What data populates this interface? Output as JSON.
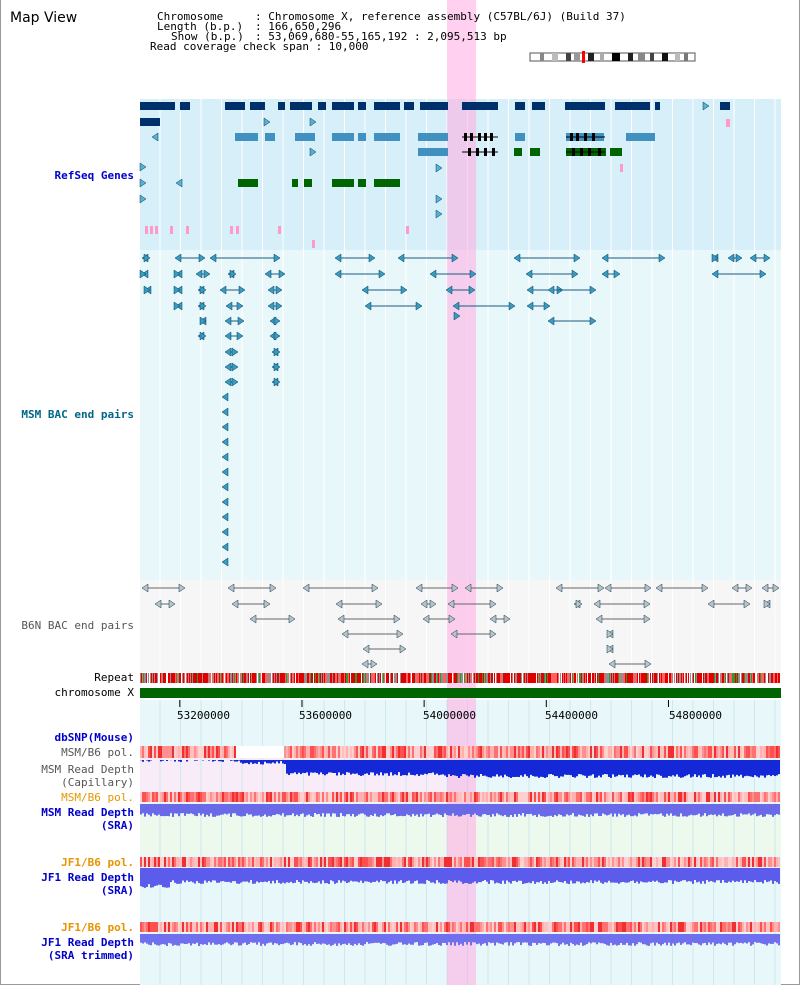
{
  "title": "Map View",
  "info": {
    "chromosome_key": "Chromosome",
    "chromosome_val": ": Chromosome X, reference assembly (C57BL/6J) (Build 37)",
    "length_key": "Length (b.p.)",
    "length_val": ": 166,650,296",
    "show_key": "Show (b.p.)",
    "show_val": ": 53,069,680-55,165,192 : 2,095,513 bp",
    "coverage": "Read coverage check span : 10,000"
  },
  "tracks": {
    "refseq": {
      "label": "RefSeq Genes",
      "color": "#0000cc"
    },
    "msm_bac": {
      "label": "MSM BAC end pairs",
      "color": "#006688"
    },
    "b6n_bac": {
      "label": "B6N BAC end pairs",
      "color": "#555555"
    },
    "repeat": {
      "label": "Repeat"
    },
    "chrom": {
      "label": "chromosome X"
    },
    "dbsnp": {
      "label": "dbSNP(Mouse)",
      "color": "#0000cc"
    },
    "msm_b6_pol_1": {
      "label": "MSM/B6 pol.",
      "color": "#555555"
    },
    "msm_depth_cap": {
      "label": "MSM Read Depth",
      "label2": "(Capillary)",
      "color": "#555555"
    },
    "msm_b6_pol_2": {
      "label": "MSM/B6 pol.",
      "color": "#e69500"
    },
    "msm_depth_sra": {
      "label": "MSM Read Depth",
      "label2": "(SRA)",
      "color": "#0000cc"
    },
    "jf1_b6_pol_1": {
      "label": "JF1/B6 pol.",
      "color": "#e69500"
    },
    "jf1_depth_sra": {
      "label": "JF1 Read Depth",
      "label2": "(SRA)",
      "color": "#0000cc"
    },
    "jf1_b6_pol_2": {
      "label": "JF1/B6 pol.",
      "color": "#e69500"
    },
    "jf1_depth_trim": {
      "label": "JF1 Read Depth",
      "label2": "(SRA trimmed)",
      "color": "#0000cc"
    }
  },
  "scale": {
    "ticks": [
      {
        "label": "53200000",
        "value": 53200000
      },
      {
        "label": "53600000",
        "value": 53600000
      },
      {
        "label": "54000000",
        "value": 54000000
      },
      {
        "label": "54400000",
        "value": 54400000
      },
      {
        "label": "54800000",
        "value": 54800000
      }
    ],
    "start": 53069680,
    "end": 55165192
  },
  "highlight": {
    "start": 54075000,
    "end": 54170000
  }
}
